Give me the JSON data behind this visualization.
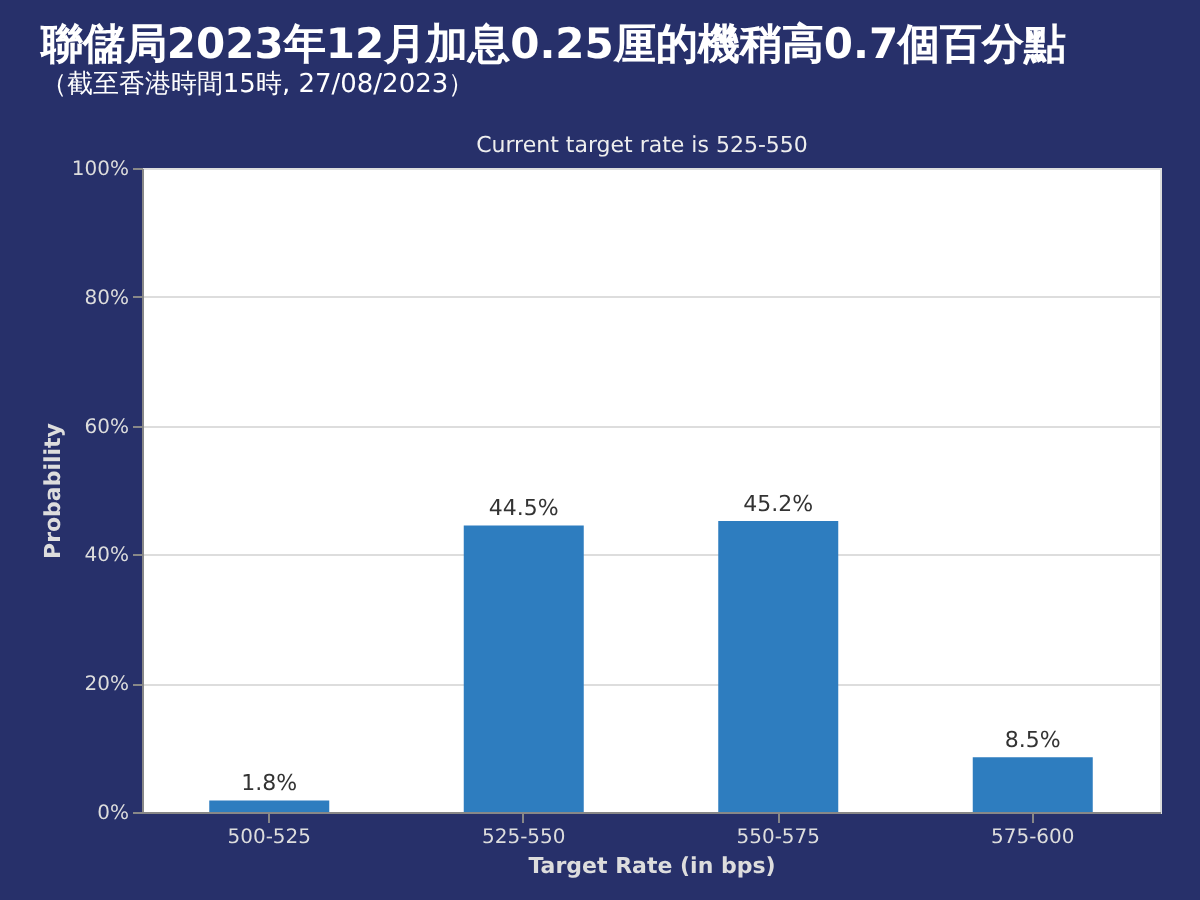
{
  "chart_data": {
    "type": "bar",
    "title": "聯儲局2023年12月加息0.25厘的機稍高0.7個百分點",
    "subtitle": "（截至香港時間15時, 27/08/2023）",
    "annotations": [
      "Current target rate is 525-550"
    ],
    "categories": [
      "500-525",
      "525-550",
      "550-575",
      "575-600"
    ],
    "values": [
      1.8,
      44.5,
      45.2,
      8.5
    ],
    "value_labels": [
      "1.8%",
      "44.5%",
      "45.2%",
      "8.5%"
    ],
    "color": "#2e7dbf",
    "xlabel": "Target Rate (in bps)",
    "ylabel": "Probability",
    "ylim": [
      0,
      100
    ],
    "yticks": [
      {
        "value": 0,
        "label": "0%"
      },
      {
        "value": 20,
        "label": "20%"
      },
      {
        "value": 40,
        "label": "40%"
      },
      {
        "value": 60,
        "label": "60%"
      },
      {
        "value": 80,
        "label": "80%"
      },
      {
        "value": 100,
        "label": "100%"
      }
    ],
    "grid": "y"
  }
}
